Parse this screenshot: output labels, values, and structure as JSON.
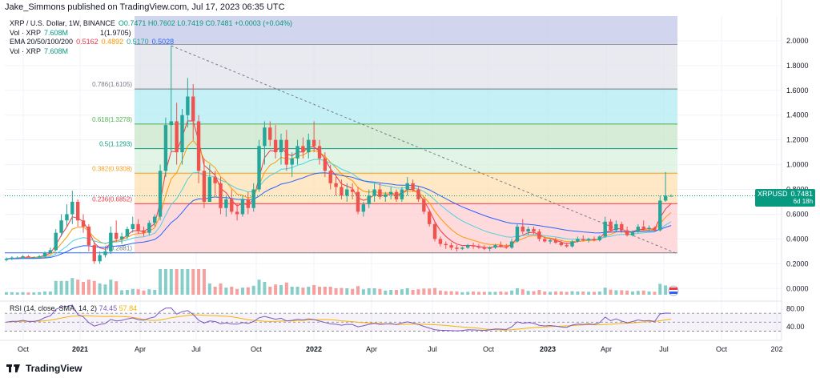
{
  "header": {
    "attribution": "Jake_Simmons published on TradingView.com, Jul 17, 2023 06:35 UTC"
  },
  "legend": {
    "symbol": "XRP / U.S. Dollar, 1W, BINANCE",
    "ohlc": "O0.7471 H0.7602 L0.7419 C0.7481 +0.0003 (+0.04%)",
    "vol_label": "Vol · XRP",
    "vol_value": "7.608M",
    "fib_top_label": "1(1.9705)",
    "ema_label": "EMA 20/50/100/200",
    "ema20": "0.5162",
    "ema50": "0.4892",
    "ema100": "0.5170",
    "ema200": "0.5028",
    "vol2_label": "Vol · XRP",
    "vol2_value": "7.608M"
  },
  "price_tag": {
    "symbol": "XRPUSD",
    "value": "0.7481",
    "countdown": "6d 18h"
  },
  "rsi_legend": {
    "label": "RSI (14, close, SMA, 14, 2)",
    "rsi": "74.45",
    "sma": "57.84"
  },
  "footer": {
    "brand": "TradingView"
  },
  "chart_data": {
    "type": "candlestick",
    "title": "XRP / U.S. Dollar, 1W, BINANCE",
    "ylim": [
      -0.05,
      2.2
    ],
    "y_ticks": [
      "2.0000",
      "1.8000",
      "1.6000",
      "1.4000",
      "1.2000",
      "1.0000",
      "0.8000",
      "0.6000",
      "0.4000",
      "0.2000",
      "0.0000"
    ],
    "y_tick_values": [
      2.0,
      1.8,
      1.6,
      1.4,
      1.2,
      1.0,
      0.8,
      0.6,
      0.4,
      0.2,
      0.0
    ],
    "x_ticks": [
      "Oct",
      "2021",
      "Apr",
      "Jul",
      "Oct",
      "2022",
      "Apr",
      "Jul",
      "Oct",
      "2023",
      "Apr",
      "Jul",
      "Oct",
      "202"
    ],
    "fib_levels": [
      {
        "label": "1(1.9705)",
        "value": 1.9705,
        "color": "#9598a1"
      },
      {
        "label": "0.786(1.6105)",
        "value": 1.6105,
        "color": "#787b86"
      },
      {
        "label": "0.618(1.3278)",
        "value": 1.3278,
        "color": "#4caf50"
      },
      {
        "label": "0.5(1.1293)",
        "value": 1.1293,
        "color": "#089981"
      },
      {
        "label": "0.382(0.9308)",
        "value": 0.9308,
        "color": "#f59c1a"
      },
      {
        "label": "0.236(0.6852)",
        "value": 0.6852,
        "color": "#f23645"
      },
      {
        "label": "0(0.2881)",
        "value": 0.2881,
        "color": "#787b86"
      }
    ],
    "candles": [
      [
        0.23,
        0.25,
        0.22,
        0.24
      ],
      [
        0.24,
        0.26,
        0.23,
        0.25
      ],
      [
        0.25,
        0.26,
        0.24,
        0.25
      ],
      [
        0.25,
        0.27,
        0.24,
        0.26
      ],
      [
        0.26,
        0.27,
        0.25,
        0.25
      ],
      [
        0.25,
        0.26,
        0.24,
        0.25
      ],
      [
        0.25,
        0.27,
        0.24,
        0.26
      ],
      [
        0.26,
        0.3,
        0.25,
        0.29
      ],
      [
        0.29,
        0.33,
        0.28,
        0.31
      ],
      [
        0.31,
        0.48,
        0.3,
        0.45
      ],
      [
        0.45,
        0.6,
        0.42,
        0.55
      ],
      [
        0.55,
        0.68,
        0.5,
        0.6
      ],
      [
        0.6,
        0.79,
        0.52,
        0.7
      ],
      [
        0.7,
        0.72,
        0.5,
        0.55
      ],
      [
        0.55,
        0.6,
        0.45,
        0.5
      ],
      [
        0.5,
        0.52,
        0.3,
        0.35
      ],
      [
        0.35,
        0.38,
        0.2,
        0.22
      ],
      [
        0.22,
        0.3,
        0.2,
        0.27
      ],
      [
        0.27,
        0.32,
        0.25,
        0.3
      ],
      [
        0.3,
        0.5,
        0.28,
        0.45
      ],
      [
        0.45,
        0.55,
        0.38,
        0.4
      ],
      [
        0.4,
        0.45,
        0.36,
        0.42
      ],
      [
        0.42,
        0.5,
        0.4,
        0.48
      ],
      [
        0.48,
        0.58,
        0.45,
        0.52
      ],
      [
        0.52,
        0.56,
        0.44,
        0.47
      ],
      [
        0.47,
        0.5,
        0.42,
        0.45
      ],
      [
        0.45,
        0.55,
        0.43,
        0.53
      ],
      [
        0.53,
        0.6,
        0.5,
        0.58
      ],
      [
        0.58,
        1.0,
        0.55,
        0.95
      ],
      [
        0.95,
        1.38,
        0.9,
        1.32
      ],
      [
        1.32,
        1.96,
        1.1,
        1.35
      ],
      [
        1.35,
        1.5,
        1.0,
        1.1
      ],
      [
        1.1,
        1.45,
        1.0,
        1.4
      ],
      [
        1.4,
        1.7,
        1.3,
        1.55
      ],
      [
        1.55,
        1.65,
        1.2,
        1.35
      ],
      [
        1.35,
        1.4,
        0.85,
        0.95
      ],
      [
        0.95,
        1.05,
        0.65,
        0.7
      ],
      [
        0.7,
        1.0,
        0.7,
        0.9
      ],
      [
        0.9,
        0.95,
        0.75,
        0.85
      ],
      [
        0.85,
        0.9,
        0.6,
        0.65
      ],
      [
        0.65,
        0.75,
        0.58,
        0.72
      ],
      [
        0.72,
        0.8,
        0.6,
        0.62
      ],
      [
        0.62,
        0.68,
        0.55,
        0.6
      ],
      [
        0.6,
        0.75,
        0.58,
        0.72
      ],
      [
        0.72,
        0.78,
        0.6,
        0.65
      ],
      [
        0.65,
        0.85,
        0.62,
        0.8
      ],
      [
        0.8,
        1.2,
        0.78,
        1.15
      ],
      [
        1.15,
        1.35,
        1.0,
        1.3
      ],
      [
        1.3,
        1.35,
        1.15,
        1.2
      ],
      [
        1.2,
        1.32,
        1.05,
        1.1
      ],
      [
        1.1,
        1.25,
        1.0,
        1.2
      ],
      [
        1.2,
        1.28,
        0.95,
        1.0
      ],
      [
        1.0,
        1.1,
        0.9,
        1.05
      ],
      [
        1.05,
        1.2,
        1.0,
        1.15
      ],
      [
        1.15,
        1.22,
        1.05,
        1.1
      ],
      [
        1.1,
        1.25,
        1.05,
        1.2
      ],
      [
        1.2,
        1.35,
        1.1,
        1.15
      ],
      [
        1.15,
        1.2,
        1.0,
        1.05
      ],
      [
        1.05,
        1.1,
        0.9,
        0.95
      ],
      [
        0.95,
        1.0,
        0.8,
        0.85
      ],
      [
        0.85,
        0.9,
        0.75,
        0.82
      ],
      [
        0.82,
        0.88,
        0.72,
        0.75
      ],
      [
        0.75,
        0.85,
        0.7,
        0.8
      ],
      [
        0.8,
        0.85,
        0.72,
        0.78
      ],
      [
        0.78,
        0.82,
        0.6,
        0.62
      ],
      [
        0.62,
        0.7,
        0.58,
        0.68
      ],
      [
        0.68,
        0.8,
        0.65,
        0.75
      ],
      [
        0.75,
        0.85,
        0.7,
        0.8
      ],
      [
        0.8,
        0.85,
        0.72,
        0.74
      ],
      [
        0.74,
        0.78,
        0.7,
        0.76
      ],
      [
        0.76,
        0.82,
        0.72,
        0.78
      ],
      [
        0.78,
        0.8,
        0.7,
        0.72
      ],
      [
        0.72,
        0.82,
        0.7,
        0.8
      ],
      [
        0.8,
        0.9,
        0.75,
        0.85
      ],
      [
        0.85,
        0.88,
        0.78,
        0.8
      ],
      [
        0.8,
        0.82,
        0.7,
        0.72
      ],
      [
        0.72,
        0.74,
        0.6,
        0.62
      ],
      [
        0.62,
        0.64,
        0.5,
        0.52
      ],
      [
        0.52,
        0.54,
        0.38,
        0.4
      ],
      [
        0.4,
        0.42,
        0.34,
        0.36
      ],
      [
        0.36,
        0.38,
        0.32,
        0.35
      ],
      [
        0.35,
        0.37,
        0.31,
        0.33
      ],
      [
        0.33,
        0.35,
        0.3,
        0.32
      ],
      [
        0.32,
        0.34,
        0.31,
        0.33
      ],
      [
        0.33,
        0.36,
        0.32,
        0.35
      ],
      [
        0.35,
        0.37,
        0.32,
        0.34
      ],
      [
        0.34,
        0.36,
        0.32,
        0.33
      ],
      [
        0.33,
        0.35,
        0.31,
        0.32
      ],
      [
        0.32,
        0.34,
        0.3,
        0.33
      ],
      [
        0.33,
        0.36,
        0.32,
        0.35
      ],
      [
        0.35,
        0.38,
        0.33,
        0.34
      ],
      [
        0.34,
        0.36,
        0.32,
        0.33
      ],
      [
        0.33,
        0.4,
        0.32,
        0.38
      ],
      [
        0.38,
        0.52,
        0.37,
        0.5
      ],
      [
        0.5,
        0.56,
        0.44,
        0.46
      ],
      [
        0.46,
        0.5,
        0.43,
        0.48
      ],
      [
        0.48,
        0.5,
        0.44,
        0.46
      ],
      [
        0.46,
        0.48,
        0.38,
        0.4
      ],
      [
        0.4,
        0.42,
        0.37,
        0.38
      ],
      [
        0.38,
        0.4,
        0.36,
        0.39
      ],
      [
        0.39,
        0.41,
        0.36,
        0.37
      ],
      [
        0.37,
        0.39,
        0.34,
        0.35
      ],
      [
        0.35,
        0.37,
        0.33,
        0.34
      ],
      [
        0.34,
        0.39,
        0.33,
        0.38
      ],
      [
        0.38,
        0.42,
        0.37,
        0.4
      ],
      [
        0.4,
        0.43,
        0.38,
        0.39
      ],
      [
        0.39,
        0.41,
        0.37,
        0.4
      ],
      [
        0.4,
        0.42,
        0.38,
        0.39
      ],
      [
        0.39,
        0.43,
        0.38,
        0.42
      ],
      [
        0.42,
        0.58,
        0.41,
        0.54
      ],
      [
        0.54,
        0.56,
        0.45,
        0.47
      ],
      [
        0.47,
        0.55,
        0.46,
        0.52
      ],
      [
        0.52,
        0.54,
        0.45,
        0.47
      ],
      [
        0.47,
        0.5,
        0.42,
        0.43
      ],
      [
        0.43,
        0.47,
        0.42,
        0.46
      ],
      [
        0.46,
        0.52,
        0.45,
        0.5
      ],
      [
        0.5,
        0.55,
        0.47,
        0.48
      ],
      [
        0.48,
        0.51,
        0.46,
        0.49
      ],
      [
        0.49,
        0.5,
        0.46,
        0.47
      ],
      [
        0.47,
        0.75,
        0.46,
        0.71
      ],
      [
        0.71,
        0.94,
        0.7,
        0.75
      ],
      [
        0.7471,
        0.7602,
        0.7419,
        0.7481
      ]
    ],
    "series": [
      {
        "name": "EMA 20",
        "color": "#f23645"
      },
      {
        "name": "EMA 50",
        "color": "#ff9800"
      },
      {
        "name": "EMA 100",
        "color": "#4dd0e1"
      },
      {
        "name": "EMA 200",
        "color": "#2962ff"
      }
    ],
    "rsi": {
      "upper": 70,
      "lower": 30,
      "y_ticks": [
        "80.00",
        "40.00"
      ],
      "y_tick_values": [
        80,
        40
      ]
    }
  }
}
